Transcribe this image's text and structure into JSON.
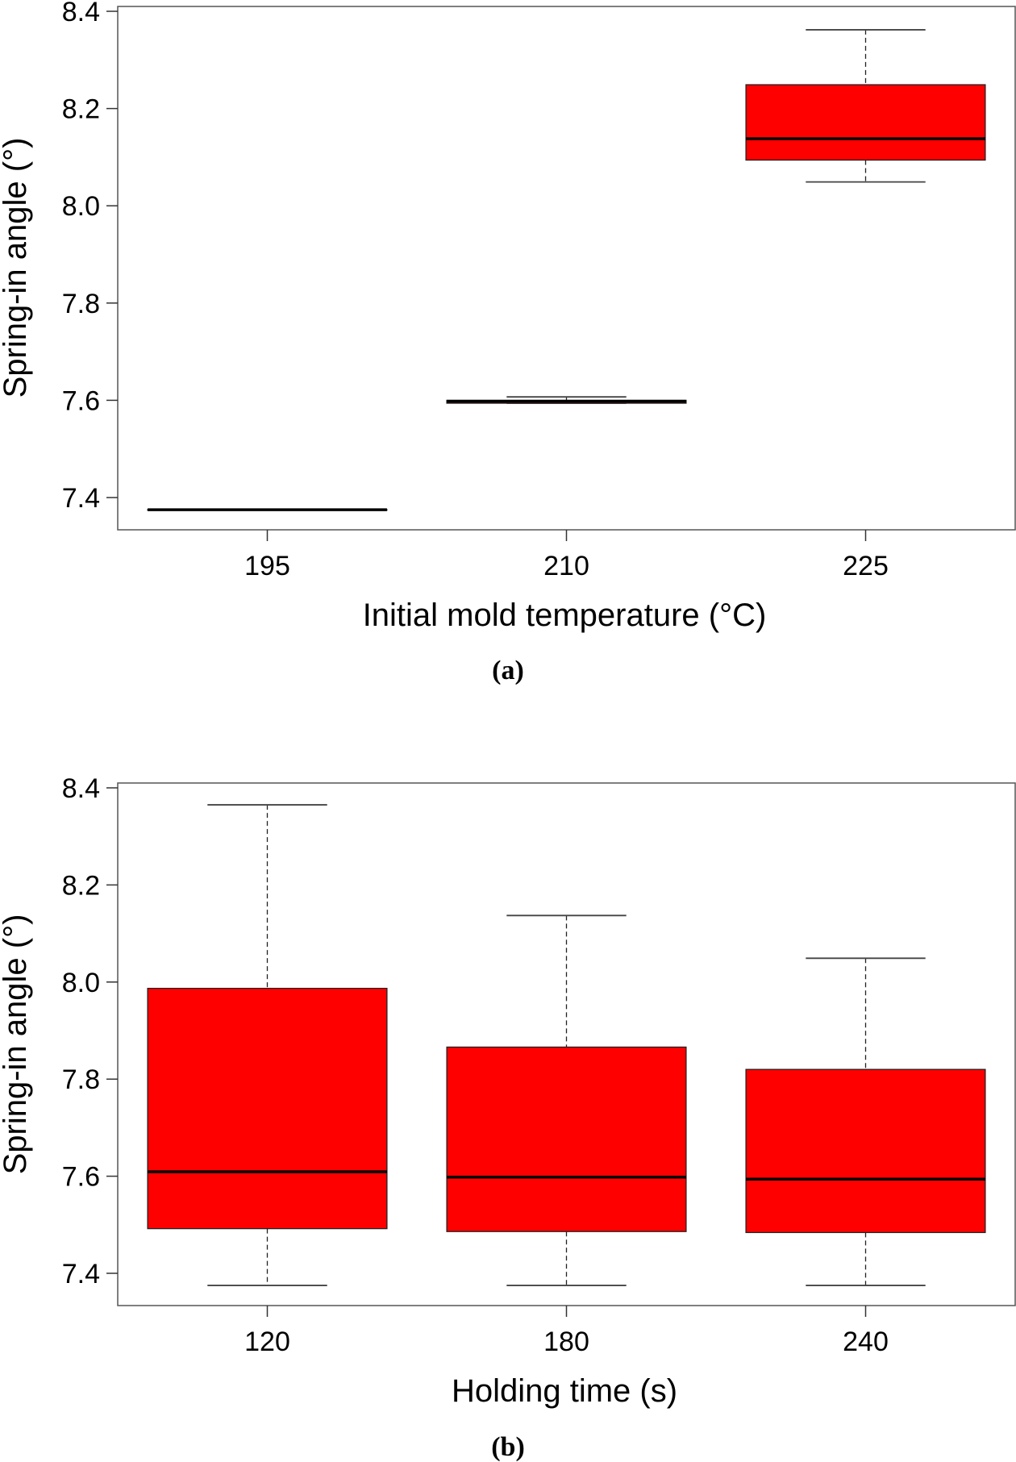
{
  "chart_data": [
    {
      "type": "boxplot",
      "panel_label": "(a)",
      "xlabel": "Initial mold temperature (°C)",
      "ylabel": "Spring-in angle (°)",
      "ylim": [
        7.34,
        8.4
      ],
      "yticks": [
        7.4,
        7.6,
        7.8,
        8.0,
        8.2,
        8.4
      ],
      "ytick_labels": [
        "7.4",
        "7.6",
        "7.8",
        "8.0",
        "8.2",
        "8.4"
      ],
      "categories": [
        "195",
        "210",
        "225"
      ],
      "box_color": "#ff0000",
      "boxes": [
        {
          "category": "195",
          "whisker_low": 7.375,
          "q1": 7.375,
          "median": 7.375,
          "q3": 7.375,
          "whisker_high": 7.375
        },
        {
          "category": "210",
          "whisker_low": 7.594,
          "q1": 7.594,
          "median": 7.598,
          "q3": 7.6,
          "whisker_high": 7.607
        },
        {
          "category": "225",
          "whisker_low": 8.049,
          "q1": 8.094,
          "median": 8.138,
          "q3": 8.249,
          "whisker_high": 8.362
        }
      ],
      "grid": false
    },
    {
      "type": "boxplot",
      "panel_label": "(b)",
      "xlabel": "Holding time (s)",
      "ylabel": "Spring-in angle (°)",
      "ylim": [
        7.34,
        8.41
      ],
      "yticks": [
        7.4,
        7.6,
        7.8,
        8.0,
        8.2,
        8.4
      ],
      "ytick_labels": [
        "7.4",
        "7.6",
        "7.8",
        "8.0",
        "8.2",
        "8.4"
      ],
      "categories": [
        "120",
        "180",
        "240"
      ],
      "box_color": "#ff0000",
      "boxes": [
        {
          "category": "120",
          "whisker_low": 7.375,
          "q1": 7.492,
          "median": 7.609,
          "q3": 7.987,
          "whisker_high": 8.365
        },
        {
          "category": "180",
          "whisker_low": 7.375,
          "q1": 7.486,
          "median": 7.598,
          "q3": 7.866,
          "whisker_high": 8.137
        },
        {
          "category": "240",
          "whisker_low": 7.375,
          "q1": 7.484,
          "median": 7.594,
          "q3": 7.82,
          "whisker_high": 8.049
        }
      ],
      "grid": false
    }
  ]
}
